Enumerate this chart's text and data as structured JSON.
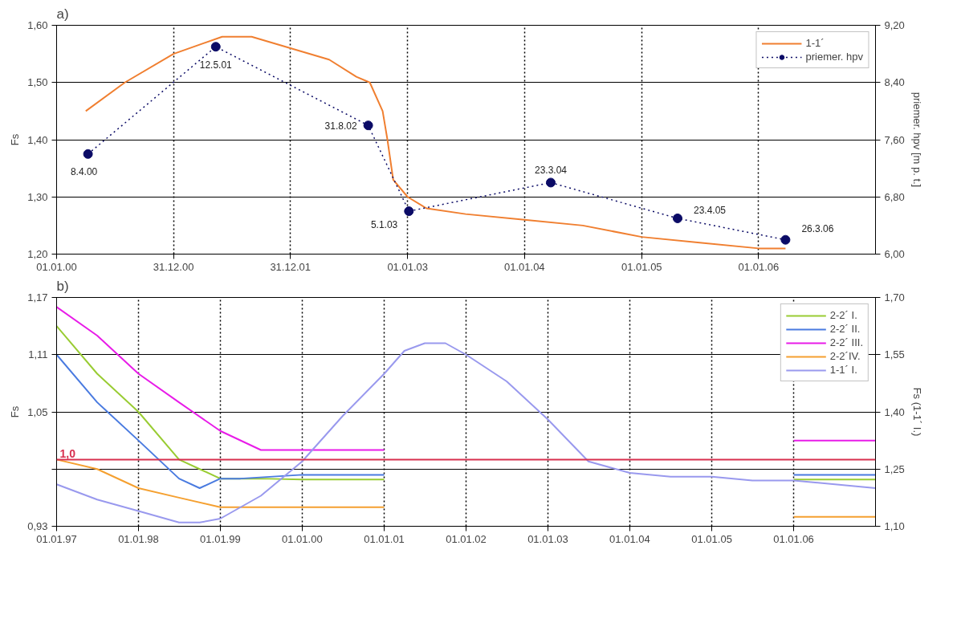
{
  "chart_data": [
    {
      "type": "line",
      "title": "a)",
      "ylabel": "Fs",
      "y2label": "priemer. hpv [m p. t.]",
      "xlim": [
        "2000-01-01",
        "2007-01-01"
      ],
      "xticks": [
        {
          "value": "2000-01-01",
          "label": "01.01.00"
        },
        {
          "value": "2000-12-31",
          "label": "31.12.00"
        },
        {
          "value": "2001-12-31",
          "label": "31.12.01"
        },
        {
          "value": "2003-01-01",
          "label": "01.01.03"
        },
        {
          "value": "2004-01-01",
          "label": "01.01.04"
        },
        {
          "value": "2005-01-01",
          "label": "01.01.05"
        },
        {
          "value": "2006-01-01",
          "label": "01.01.06"
        }
      ],
      "ylim": [
        1.2,
        1.6
      ],
      "yticks": [
        {
          "value": 1.2,
          "label": "1,20"
        },
        {
          "value": 1.3,
          "label": "1,30"
        },
        {
          "value": 1.4,
          "label": "1,40"
        },
        {
          "value": 1.5,
          "label": "1,50"
        },
        {
          "value": 1.6,
          "label": "1,60"
        }
      ],
      "y2lim": [
        6.0,
        9.2
      ],
      "y2ticks": [
        {
          "value": 6.0,
          "label": "6,00"
        },
        {
          "value": 6.8,
          "label": "6,80"
        },
        {
          "value": 7.6,
          "label": "7,60"
        },
        {
          "value": 8.4,
          "label": "8,40"
        },
        {
          "value": 9.2,
          "label": "9,20"
        }
      ],
      "grid": true,
      "legend": "top right",
      "series": [
        {
          "name": "1-1´",
          "color": "#f07f30",
          "marker": "none",
          "line_style": "solid",
          "x": [
            "2000-04-01",
            "2000-08-01",
            "2000-12-31",
            "2001-06-01",
            "2001-09-01",
            "2001-12-31",
            "2002-05-01",
            "2002-07-25",
            "2002-09-05",
            "2002-10-15",
            "2002-10-30",
            "2002-11-17",
            "2003-01-01",
            "2003-03-01",
            "2003-07-01",
            "2004-01-01",
            "2004-07-01",
            "2005-01-01",
            "2005-07-01",
            "2006-01-01",
            "2006-03-26"
          ],
          "values": [
            1.45,
            1.5,
            1.55,
            1.58,
            1.58,
            1.56,
            1.54,
            1.51,
            1.5,
            1.45,
            1.4,
            1.33,
            1.3,
            1.28,
            1.27,
            1.26,
            1.25,
            1.23,
            1.22,
            1.21,
            1.21
          ]
        },
        {
          "name": "priemer. hpv",
          "color": "#0b0b66",
          "axis": "y2",
          "marker": "circle",
          "line_style": "dotted",
          "x": [
            "2000-04-08",
            "2001-05-12",
            "2002-08-31",
            "2003-01-05",
            "2004-03-23",
            "2005-04-23",
            "2006-03-26"
          ],
          "values": [
            7.4,
            8.9,
            7.8,
            6.6,
            7.0,
            6.5,
            6.2
          ],
          "value_labels": [
            "8.4.00",
            "12.5.01",
            "31.8.02",
            "5.1.03",
            "23.3.04",
            "23.4.05",
            "26.3.06"
          ]
        }
      ]
    },
    {
      "type": "line",
      "title": "b)",
      "ylabel": "Fs",
      "y2label": "Fs (1-1´ I.)",
      "xlim": [
        "1997-01-01",
        "2007-01-01"
      ],
      "xticks": [
        {
          "value": "1997-01-01",
          "label": "01.01.97"
        },
        {
          "value": "1998-01-01",
          "label": "01.01.98"
        },
        {
          "value": "1999-01-01",
          "label": "01.01.99"
        },
        {
          "value": "2000-01-01",
          "label": "01.01.00"
        },
        {
          "value": "2001-01-01",
          "label": "01.01.01"
        },
        {
          "value": "2002-01-01",
          "label": "01.01.02"
        },
        {
          "value": "2003-01-01",
          "label": "01.01.03"
        },
        {
          "value": "2004-01-01",
          "label": "01.01.04"
        },
        {
          "value": "2005-01-01",
          "label": "01.01.05"
        },
        {
          "value": "2006-01-01",
          "label": "01.01.06"
        }
      ],
      "ylim": [
        0.93,
        1.17
      ],
      "yticks": [
        {
          "value": 0.93,
          "label": "0,93"
        },
        {
          "value": 0.99,
          "label": null
        },
        {
          "value": 1.05,
          "label": "1,05"
        },
        {
          "value": 1.11,
          "label": "1,11"
        },
        {
          "value": 1.17,
          "label": "1,17"
        }
      ],
      "y2lim": [
        1.1,
        1.7
      ],
      "y2ticks": [
        {
          "value": 1.1,
          "label": "1,10"
        },
        {
          "value": 1.25,
          "label": "1,25"
        },
        {
          "value": 1.4,
          "label": "1,40"
        },
        {
          "value": 1.55,
          "label": "1,55"
        },
        {
          "value": 1.7,
          "label": "1,70"
        }
      ],
      "grid": true,
      "legend": "top right",
      "ref_lines": [
        {
          "axis": "y",
          "value": 1.0,
          "label": "1,0",
          "color": "#d8304f"
        }
      ],
      "series": [
        {
          "name": "2-2´ I.",
          "color": "#99cc33",
          "x": [
            "1997-01-01",
            "1997-07-01",
            "1998-01-01",
            "1998-07-01",
            "1998-10-01",
            "1999-01-01",
            "1999-07-01",
            "2000-01-01",
            "2001-01-01",
            null,
            "2006-01-01",
            "2007-01-01"
          ],
          "values": [
            1.14,
            1.09,
            1.05,
            1.0,
            0.99,
            0.98,
            0.98,
            0.979,
            0.979,
            null,
            0.979,
            0.979
          ]
        },
        {
          "name": "2-2´ II.",
          "color": "#4a7be0",
          "x": [
            "1997-01-01",
            "1997-07-01",
            "1998-01-01",
            "1998-07-01",
            "1998-10-01",
            "1999-01-01",
            "1999-04-01",
            "2000-01-01",
            "2001-01-01",
            null,
            "2006-01-01",
            "2007-01-01"
          ],
          "values": [
            1.11,
            1.06,
            1.02,
            0.98,
            0.97,
            0.98,
            0.98,
            0.984,
            0.984,
            null,
            0.984,
            0.984
          ]
        },
        {
          "name": "2-2´ III.",
          "color": "#e81ce8",
          "x": [
            "1997-01-01",
            "1997-07-01",
            "1998-01-01",
            "1998-07-01",
            "1999-01-01",
            "1999-07-01",
            "1999-10-01",
            "2000-01-01",
            "2001-01-01",
            null,
            "2006-01-01",
            "2007-01-01"
          ],
          "values": [
            1.16,
            1.13,
            1.09,
            1.06,
            1.03,
            1.01,
            1.01,
            1.01,
            1.01,
            null,
            1.02,
            1.02
          ]
        },
        {
          "name": "2-2´IV.",
          "color": "#f5a030",
          "x": [
            "1997-01-01",
            "1997-07-01",
            "1998-01-01",
            "1998-07-01",
            "1999-01-01",
            "1999-07-01",
            "2000-01-01",
            "2001-01-01",
            null,
            "2006-01-01",
            "2007-01-01"
          ],
          "values": [
            1.0,
            0.99,
            0.97,
            0.96,
            0.95,
            0.95,
            0.95,
            0.95,
            null,
            0.94,
            0.94
          ]
        },
        {
          "name": "1-1´ I.",
          "color": "#9999ee",
          "axis": "y2",
          "x": [
            "1997-01-01",
            "1997-07-01",
            "1998-01-01",
            "1998-07-01",
            "1998-10-01",
            "1999-01-01",
            "1999-07-01",
            "2000-01-01",
            "2000-07-01",
            "2001-01-01",
            "2001-04-01",
            "2001-07-01",
            "2001-10-01",
            "2002-01-01",
            "2002-07-01",
            "2003-01-01",
            "2003-07-01",
            "2004-01-01",
            "2004-07-01",
            "2005-01-01",
            "2005-07-01",
            "2006-01-01",
            "2007-01-01"
          ],
          "values": [
            1.21,
            1.17,
            1.14,
            1.11,
            1.11,
            1.12,
            1.18,
            1.27,
            1.39,
            1.5,
            1.56,
            1.58,
            1.58,
            1.55,
            1.48,
            1.38,
            1.27,
            1.24,
            1.23,
            1.23,
            1.22,
            1.22,
            1.2
          ]
        }
      ]
    }
  ]
}
